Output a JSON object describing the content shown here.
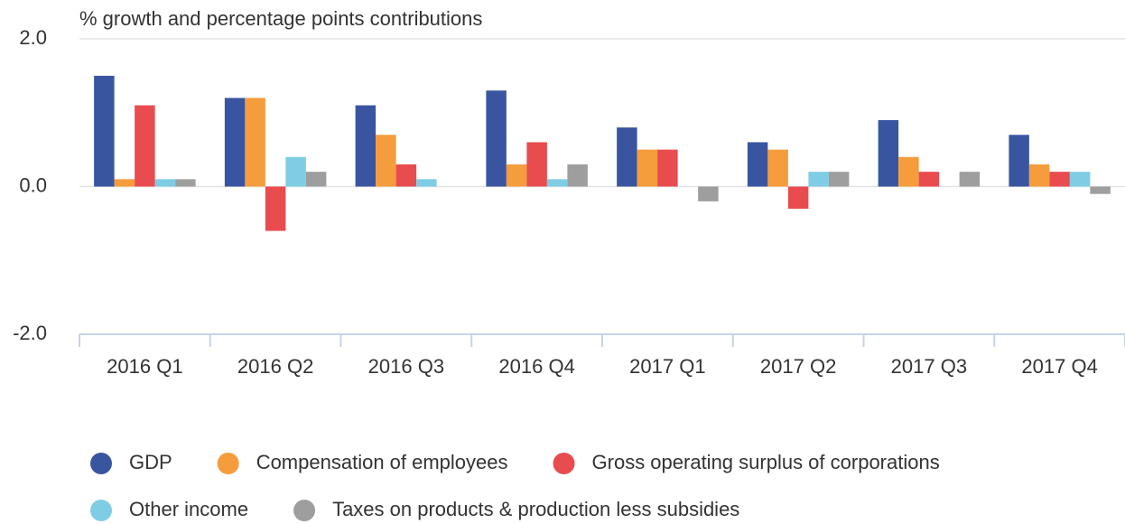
{
  "chart_data": {
    "type": "bar",
    "y_label": "% growth and percentage points contributions",
    "categories": [
      "2016 Q1",
      "2016 Q2",
      "2016 Q3",
      "2016 Q4",
      "2017 Q1",
      "2017 Q2",
      "2017 Q3",
      "2017 Q4"
    ],
    "series": [
      {
        "name": "GDP",
        "color": "#3a55a0",
        "values": [
          1.5,
          1.2,
          1.1,
          1.3,
          0.8,
          0.6,
          0.9,
          0.7
        ]
      },
      {
        "name": "Compensation of employees",
        "color": "#f59c3c",
        "values": [
          0.1,
          1.2,
          0.7,
          0.3,
          0.5,
          0.5,
          0.4,
          0.3
        ]
      },
      {
        "name": "Gross operating surplus of corporations",
        "color": "#e84c4f",
        "values": [
          1.1,
          -0.6,
          0.3,
          0.6,
          0.5,
          -0.3,
          0.2,
          0.2
        ]
      },
      {
        "name": "Other income",
        "color": "#7fcde5",
        "values": [
          0.1,
          0.4,
          0.1,
          0.1,
          0,
          0.2,
          0,
          0.2
        ]
      },
      {
        "name": "Taxes on products & production less subsidies",
        "color": "#9e9e9e",
        "values": [
          0.1,
          0.2,
          0,
          0.3,
          -0.2,
          0.2,
          0.2,
          -0.1
        ]
      }
    ],
    "ylim": [
      -2,
      2
    ],
    "yticks": [
      {
        "value": -2,
        "label": "-2.0"
      },
      {
        "value": 0,
        "label": "0.0"
      },
      {
        "value": 2,
        "label": "2.0"
      }
    ],
    "grid": true
  }
}
